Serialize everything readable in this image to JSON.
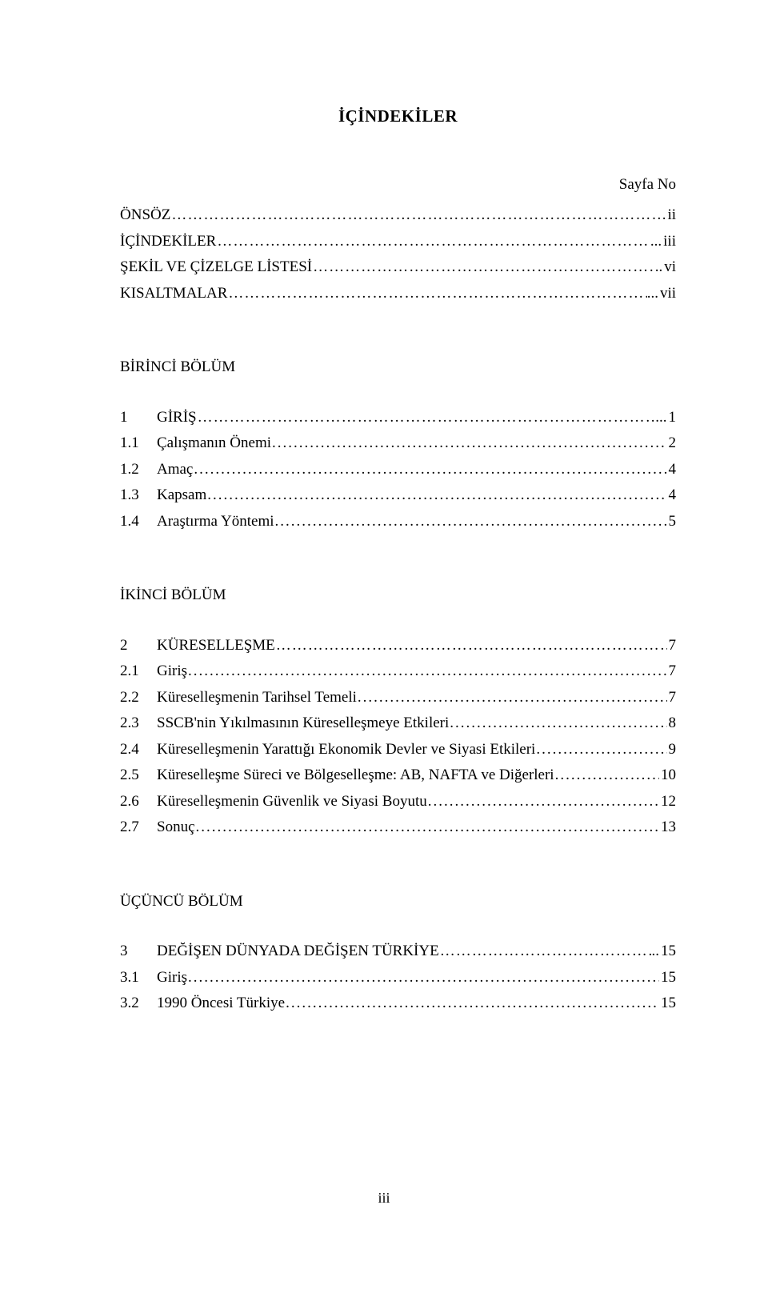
{
  "title": "İÇİNDEKİLER",
  "page_label": "Sayfa No",
  "front": [
    {
      "label": "ÖNSÖZ",
      "page": "ii",
      "leader": "long"
    },
    {
      "label": "İÇİNDEKİLER",
      "page": "iii",
      "leader": "long"
    },
    {
      "label": "ŞEKİL VE ÇİZELGE LİSTESİ",
      "page": "vi",
      "leader": "long"
    },
    {
      "label": "KISALTMALAR",
      "page": "vii",
      "leader": "long"
    }
  ],
  "sections": [
    {
      "heading": "BİRİNCİ BÖLÜM",
      "chapter": {
        "num": "1",
        "label": "GİRİŞ",
        "page": "1",
        "leader": "long"
      },
      "subs": [
        {
          "num": "1.1",
          "label": "Çalışmanın Önemi",
          "page": "2"
        },
        {
          "num": "1.2",
          "label": "Amaç",
          "page": "4"
        },
        {
          "num": "1.3",
          "label": "Kapsam",
          "page": "4"
        },
        {
          "num": "1.4",
          "label": "Araştırma Yöntemi",
          "page": "5"
        }
      ]
    },
    {
      "heading": "İKİNCİ BÖLÜM",
      "chapter": {
        "num": "2",
        "label": "KÜRESELLEŞME",
        "page": "7",
        "leader": "long"
      },
      "subs": [
        {
          "num": "2.1",
          "label": "Giriş",
          "page": "7"
        },
        {
          "num": "2.2",
          "label": "Küreselleşmenin Tarihsel Temeli",
          "page": "7"
        },
        {
          "num": "2.3",
          "label": "SSCB'nin Yıkılmasının Küreselleşmeye Etkileri",
          "page": "8"
        },
        {
          "num": "2.4",
          "label": "Küreselleşmenin Yarattığı Ekonomik Devler ve Siyasi Etkileri",
          "page": "9"
        },
        {
          "num": "2.5",
          "label": "Küreselleşme Süreci ve Bölgeselleşme: AB, NAFTA ve Diğerleri",
          "page": "10"
        },
        {
          "num": "2.6",
          "label": "Küreselleşmenin Güvenlik ve Siyasi Boyutu",
          "page": "12"
        },
        {
          "num": "2.7",
          "label": "Sonuç",
          "page": "13"
        }
      ]
    },
    {
      "heading": "ÜÇÜNCÜ BÖLÜM",
      "chapter": {
        "num": "3",
        "label": "DEĞİŞEN DÜNYADA DEĞİŞEN TÜRKİYE",
        "page": "15",
        "leader": "long"
      },
      "subs": [
        {
          "num": "3.1",
          "label": "Giriş",
          "page": "15"
        },
        {
          "num": "3.2",
          "label": "1990 Öncesi Türkiye",
          "page": "15"
        }
      ]
    }
  ],
  "page_number": "iii",
  "dots": "........................................................................................................................................................................................................",
  "long_dots": "………………………………………………………………………………………………………………………………"
}
